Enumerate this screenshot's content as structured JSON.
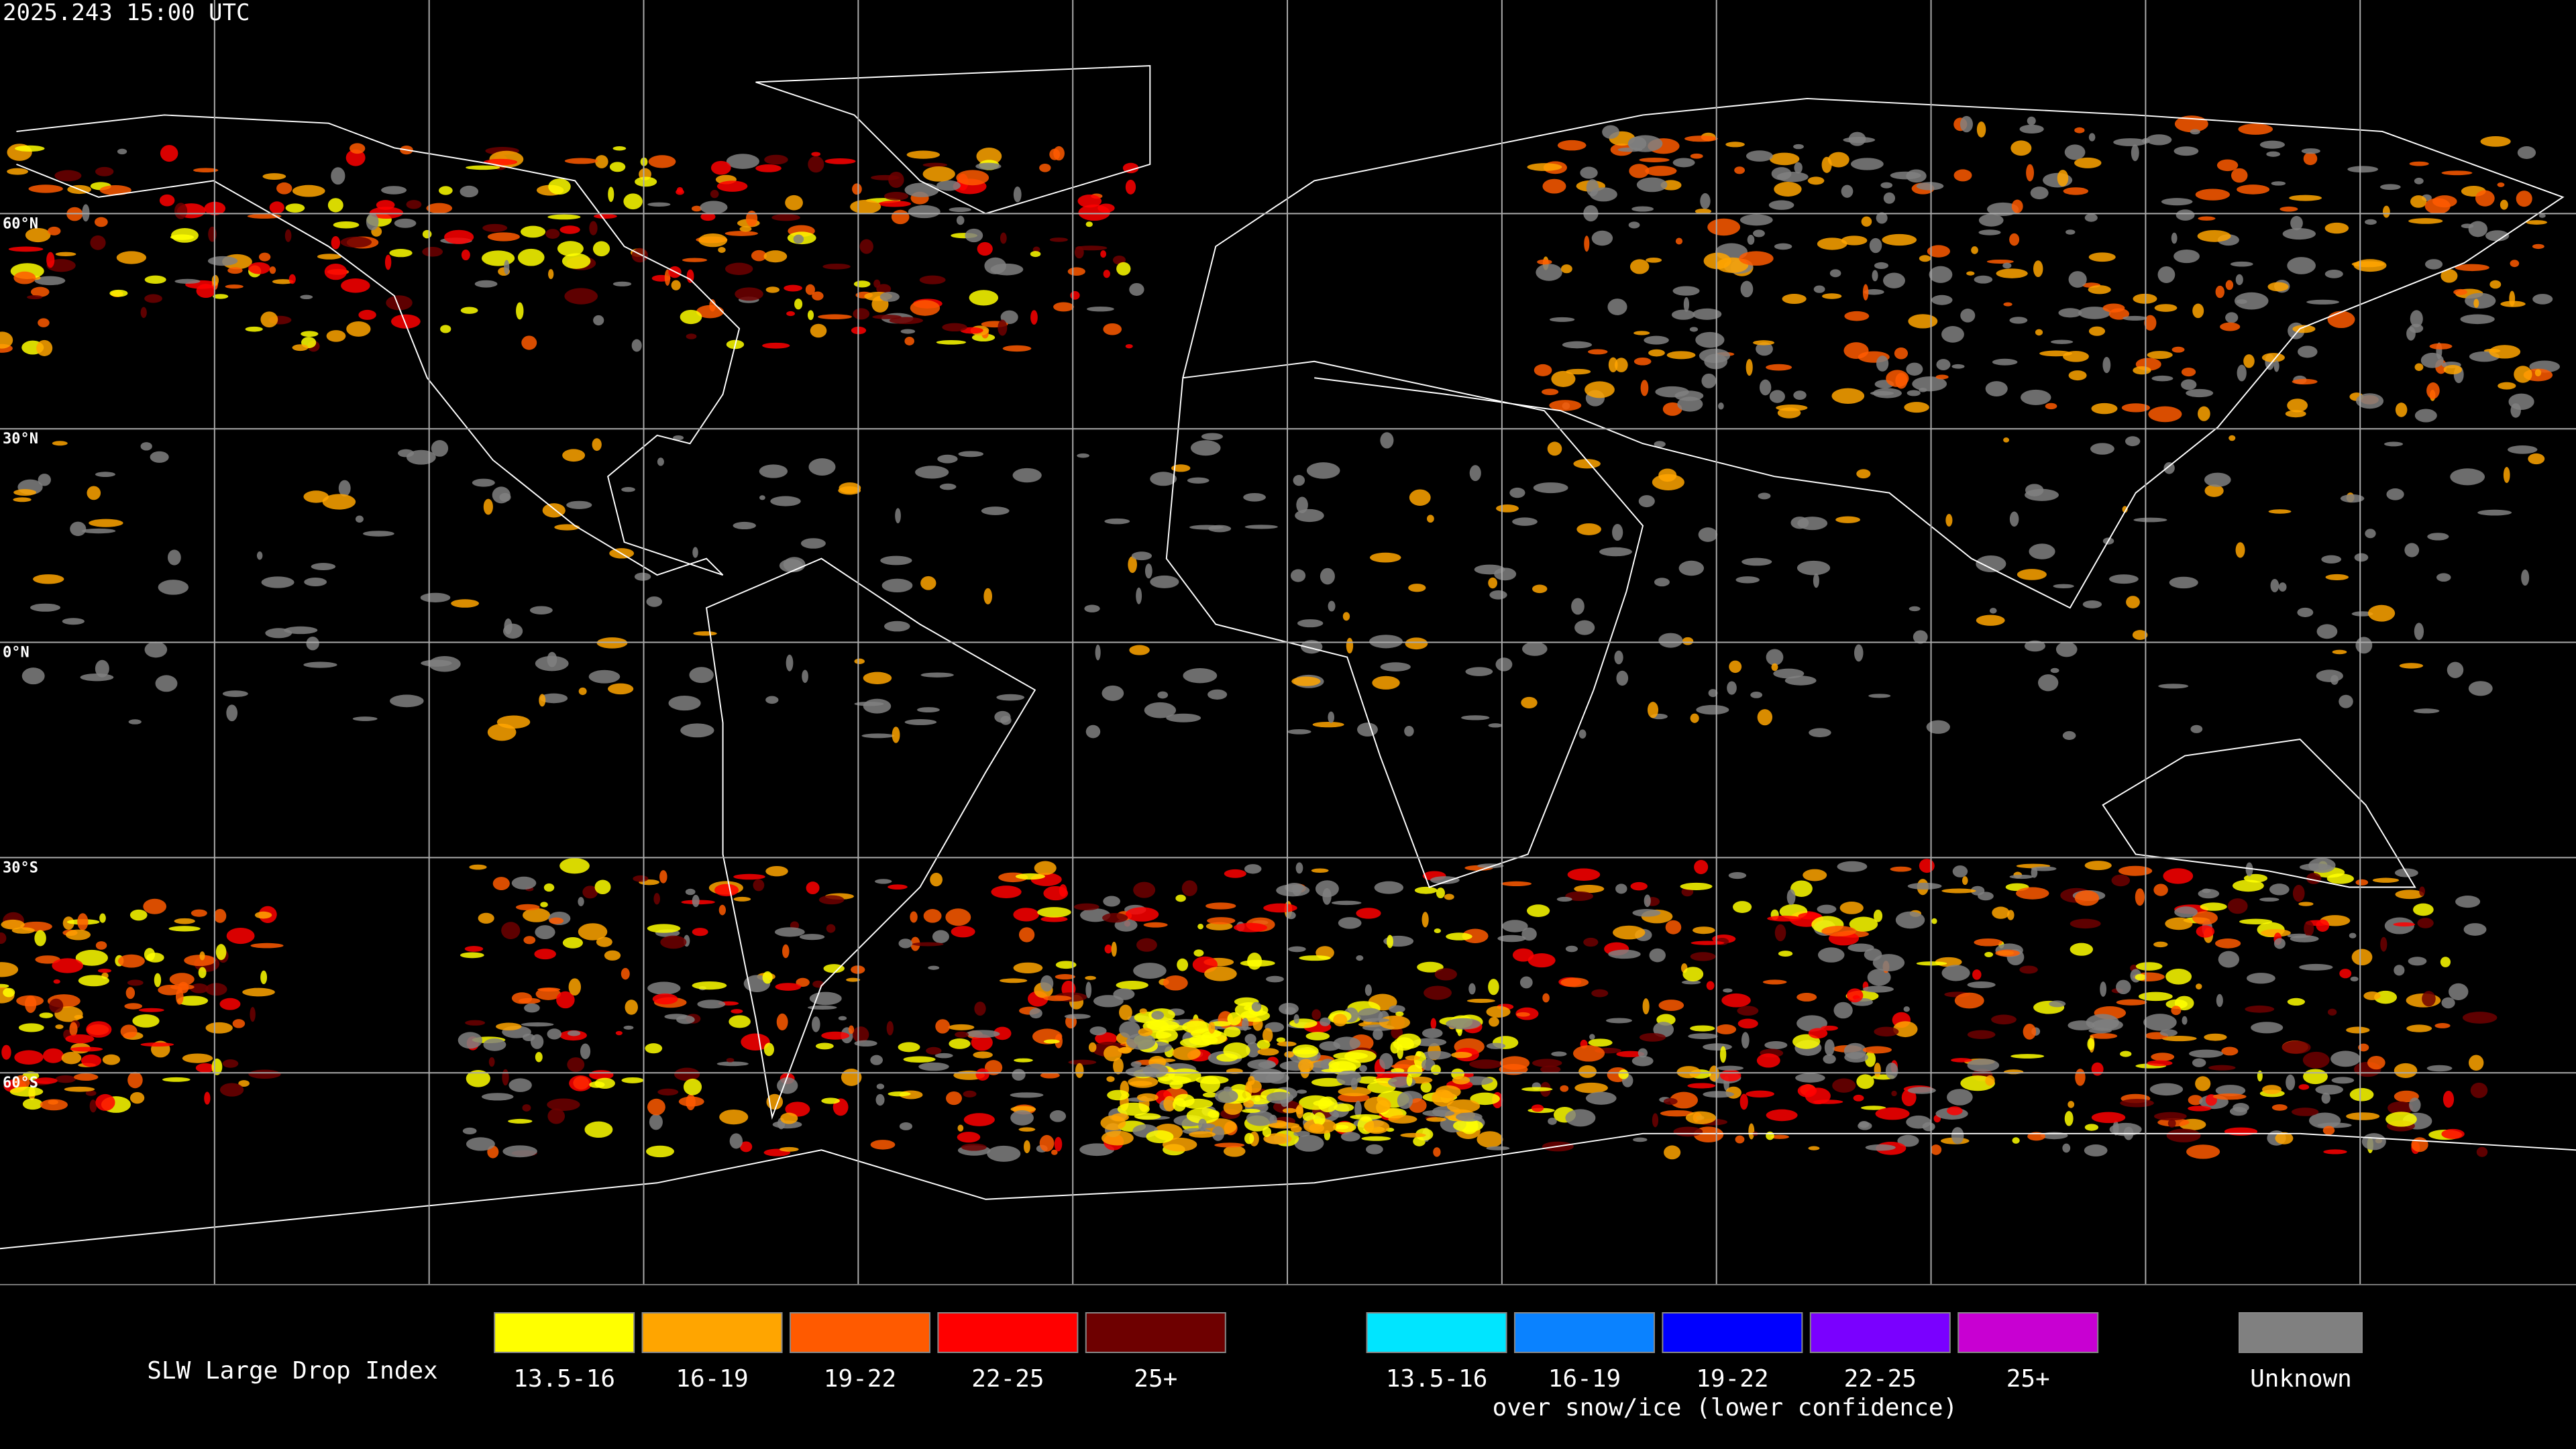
{
  "header": {
    "timestamp": "2025.243 15:00 UTC"
  },
  "map": {
    "latitude_labels": [
      "60°N",
      "30°N",
      "0°N",
      "30°S",
      "60°S"
    ]
  },
  "legend": {
    "title": "SLW Large Drop Index",
    "groups": [
      {
        "items": [
          {
            "label": "13.5-16",
            "color": "#ffff00"
          },
          {
            "label": "16-19",
            "color": "#ffa500"
          },
          {
            "label": "19-22",
            "color": "#ff5a00"
          },
          {
            "label": "22-25",
            "color": "#ff0000"
          },
          {
            "label": "25+",
            "color": "#6e0000"
          }
        ]
      },
      {
        "items": [
          {
            "label": "13.5-16",
            "color": "#00e5ff"
          },
          {
            "label": "16-19",
            "color": "#0a82ff"
          },
          {
            "label": "19-22",
            "color": "#0000ff"
          },
          {
            "label": "22-25",
            "color": "#7a00ff"
          },
          {
            "label": "25+",
            "color": "#c800d2"
          }
        ],
        "caption": "over snow/ice (lower confidence)"
      }
    ],
    "unknown": {
      "label": "Unknown",
      "color": "#808080"
    }
  }
}
